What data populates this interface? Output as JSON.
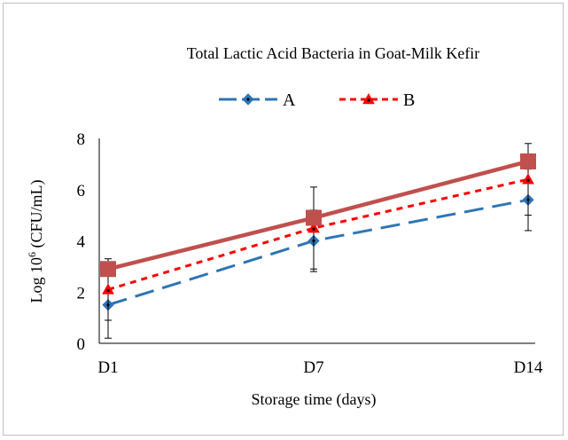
{
  "chart_data": {
    "type": "line",
    "title": "Total Lactic Acid Bacteria in Goat-Milk Kefir",
    "xlabel": "Storage time (days)",
    "ylabel_prefix": "Log 10",
    "ylabel_sup": "6",
    "ylabel_suffix": " (CFU/mL)",
    "categories": [
      "D1",
      "D7",
      "D14"
    ],
    "ylim": [
      0,
      8
    ],
    "yticks": [
      "0",
      "2",
      "4",
      "6",
      "8"
    ],
    "grid": false,
    "legend_position": "top",
    "series": [
      {
        "name": "A",
        "values": [
          1.5,
          4.0,
          5.6
        ],
        "error": [
          1.3,
          1.2,
          1.2
        ],
        "color": "#2e75b6",
        "dash": "long-dash",
        "marker": "diamond",
        "in_legend": true
      },
      {
        "name": "B",
        "values": [
          2.1,
          4.5,
          6.4
        ],
        "error": [
          1.2,
          1.6,
          1.4
        ],
        "color": "#ff0000",
        "dash": "short-dash",
        "marker": "triangle",
        "in_legend": true
      },
      {
        "name": "",
        "values": [
          2.9,
          4.9,
          7.1
        ],
        "error": [
          0,
          0,
          0
        ],
        "color": "#c0504d",
        "dash": "solid",
        "marker": "square",
        "in_legend": false
      }
    ]
  }
}
